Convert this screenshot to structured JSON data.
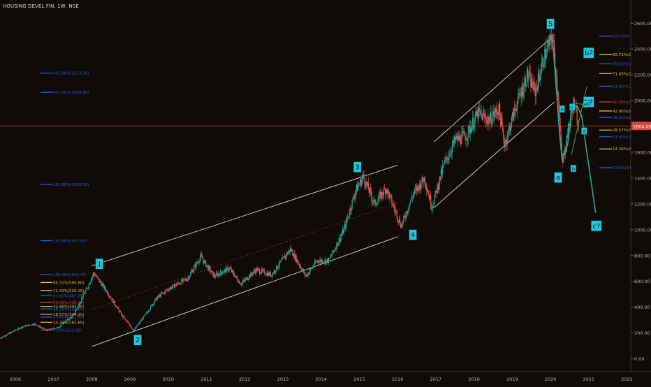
{
  "header": {
    "symbol_title": "HOUSING DEVEL FIN, 1W, NSE"
  },
  "colors": {
    "background": "#110b07",
    "candle_up": "#26a69a",
    "candle_down": "#ef5350",
    "channel": "#d9d9d9",
    "fib_blue": "#2962ff",
    "fib_yellow": "#f2d23a",
    "fib_red": "#f23645",
    "wave_label_bg": "#26c6da",
    "projection": "#26a69a",
    "green_line": "#4caf50",
    "price_line": "#c6472f"
  },
  "chart_data": {
    "type": "candlestick",
    "title": "HOUSING DEVEL FIN, 1W, NSE",
    "ylim": [
      -100,
      2780
    ],
    "xlim": [
      2005.6,
      2022.1
    ],
    "x_ticks": [
      "2006",
      "2007",
      "2008",
      "2009",
      "2010",
      "2011",
      "2012",
      "2013",
      "2014",
      "2015",
      "2016",
      "2017",
      "2018",
      "2019",
      "2020",
      "2021",
      "2022"
    ],
    "x_tick_years": [
      2006,
      2007,
      2008,
      2009,
      2010,
      2011,
      2012,
      2013,
      2014,
      2015,
      2016,
      2017,
      2018,
      2019,
      2020,
      2021,
      2022
    ],
    "y_ticks": [
      "2600.00",
      "2400.00",
      "2200.00",
      "2000.00",
      "1800.00",
      "1600.00",
      "1400.00",
      "1200.00",
      "1000.00",
      "800.00",
      "600.00",
      "400.00",
      "200.00",
      "0.00"
    ],
    "y_tick_values": [
      2600,
      2400,
      2200,
      2000,
      1800,
      1600,
      1400,
      1200,
      1000,
      800,
      600,
      400,
      200,
      0
    ],
    "current_price": {
      "label": "1804.05",
      "value": 1804.05
    },
    "price_path": [
      [
        2005.6,
        160
      ],
      [
        2006.2,
        250
      ],
      [
        2006.5,
        270
      ],
      [
        2006.8,
        220
      ],
      [
        2007.1,
        240
      ],
      [
        2007.5,
        330
      ],
      [
        2007.9,
        560
      ],
      [
        2008.05,
        665
      ],
      [
        2008.4,
        520
      ],
      [
        2008.8,
        330
      ],
      [
        2009.1,
        220
      ],
      [
        2009.4,
        340
      ],
      [
        2009.7,
        470
      ],
      [
        2010.0,
        540
      ],
      [
        2010.5,
        620
      ],
      [
        2010.85,
        790
      ],
      [
        2011.2,
        640
      ],
      [
        2011.6,
        700
      ],
      [
        2011.9,
        580
      ],
      [
        2012.3,
        690
      ],
      [
        2012.7,
        650
      ],
      [
        2013.2,
        850
      ],
      [
        2013.6,
        640
      ],
      [
        2013.9,
        760
      ],
      [
        2014.2,
        760
      ],
      [
        2014.6,
        1000
      ],
      [
        2014.9,
        1300
      ],
      [
        2015.1,
        1410
      ],
      [
        2015.4,
        1200
      ],
      [
        2015.7,
        1320
      ],
      [
        2016.1,
        1030
      ],
      [
        2016.4,
        1270
      ],
      [
        2016.7,
        1400
      ],
      [
        2016.9,
        1180
      ],
      [
        2017.2,
        1490
      ],
      [
        2017.5,
        1690
      ],
      [
        2017.8,
        1730
      ],
      [
        2018.1,
        1900
      ],
      [
        2018.4,
        1850
      ],
      [
        2018.65,
        1940
      ],
      [
        2018.8,
        1660
      ],
      [
        2019.1,
        1960
      ],
      [
        2019.4,
        2200
      ],
      [
        2019.6,
        2070
      ],
      [
        2019.85,
        2350
      ],
      [
        2020.05,
        2500
      ],
      [
        2020.2,
        2050
      ],
      [
        2020.3,
        1500
      ],
      [
        2020.45,
        1750
      ],
      [
        2020.6,
        1980
      ],
      [
        2020.75,
        1800
      ]
    ],
    "wave_labels": [
      {
        "text": "1",
        "x": 2008.2,
        "y": 735
      },
      {
        "text": "2",
        "x": 2009.2,
        "y": 145
      },
      {
        "text": "3",
        "x": 2014.95,
        "y": 1485
      },
      {
        "text": "4",
        "x": 2016.4,
        "y": 960
      },
      {
        "text": "5",
        "x": 2020.0,
        "y": 2595
      },
      {
        "text": "a",
        "x": 2020.2,
        "y": 1405
      },
      {
        "text": "b?",
        "x": 2021.0,
        "y": 2370
      },
      {
        "text": "b?",
        "x": 2021.0,
        "y": 1990
      },
      {
        "text": "c?",
        "x": 2021.2,
        "y": 1030
      }
    ],
    "sub_wave_labels": [
      {
        "text": "a",
        "x": 2020.3,
        "y": 1935
      },
      {
        "text": "b",
        "x": 2020.6,
        "y": 1475
      },
      {
        "text": "c",
        "x": 2020.57,
        "y": 1950
      },
      {
        "text": "ei",
        "x": 2020.93,
        "y": 1975
      },
      {
        "text": "d",
        "x": 2020.88,
        "y": 1765
      }
    ],
    "channels": [
      {
        "x1": 2008.0,
        "y1": 720,
        "x2": 2016.0,
        "y2": 1500
      },
      {
        "x1": 2008.0,
        "y1": 95,
        "x2": 2016.0,
        "y2": 945
      },
      {
        "x1": 2016.95,
        "y1": 1680,
        "x2": 2020.1,
        "y2": 2510
      },
      {
        "x1": 2016.95,
        "y1": 1170,
        "x2": 2020.1,
        "y2": 1990
      }
    ],
    "mid_channel": {
      "x1": 2008.0,
      "y1": 380,
      "x2": 2016.0,
      "y2": 1210
    },
    "projection_path": [
      [
        2020.05,
        2500
      ],
      [
        2020.2,
        1900
      ],
      [
        2020.25,
        1700
      ],
      [
        2020.3,
        1560
      ],
      [
        2020.45,
        1660
      ],
      [
        2020.55,
        1920
      ],
      [
        2020.7,
        1960
      ],
      [
        2020.82,
        1880
      ],
      [
        2020.95,
        1600
      ],
      [
        2021.05,
        1400
      ],
      [
        2021.18,
        1130
      ]
    ],
    "green_lines": [
      {
        "x1": 2020.55,
        "y1": 1580,
        "x2": 2020.95,
        "y2": 2110
      },
      {
        "x1": 2020.6,
        "y1": 1980,
        "x2": 2020.9,
        "y2": 1970
      }
    ],
    "fib_left": [
      {
        "label": "461.80%(2213.30)",
        "value": 2213.3,
        "color": "blue"
      },
      {
        "label": "427.00%(2064.60)",
        "value": 2064.6,
        "color": "blue"
      },
      {
        "label": "261.80%(1350.50)",
        "value": 1350.5,
        "color": "blue"
      },
      {
        "label": "161.80%(915.05)",
        "value": 915.05,
        "color": "blue"
      },
      {
        "label": "100.00%(652.45)",
        "value": 652.45,
        "color": "blue"
      },
      {
        "label": "85.71%(590.80)",
        "value": 590.8,
        "color": "yellow"
      },
      {
        "label": "71.43%(529.15)",
        "value": 529.15,
        "color": "yellow"
      },
      {
        "label": "61.80%(487.65)",
        "value": 487.65,
        "color": "blue"
      },
      {
        "label": "50.00%(436.75)",
        "value": 436.75,
        "color": "red"
      },
      {
        "label": "42.86%(405.90)",
        "value": 405.9,
        "color": "yellow"
      },
      {
        "label": "38.20%(385.80)",
        "value": 385.8,
        "color": "blue"
      },
      {
        "label": "28.57%(344.25)",
        "value": 344.25,
        "color": "yellow"
      },
      {
        "label": "23.60%(322.70)",
        "value": 322.7,
        "color": "blue"
      },
      {
        "label": "14.29%(282.65)",
        "value": 282.65,
        "color": "yellow"
      },
      {
        "label": "0.00%(221.00)",
        "value": 221.0,
        "color": "blue"
      }
    ],
    "fib_right": [
      {
        "label": "100.00%",
        "value": 2500,
        "color": "blue"
      },
      {
        "label": "85.71%(2",
        "value": 2357,
        "color": "yellow"
      },
      {
        "label": "78.60%(2",
        "value": 2285,
        "color": "blue"
      },
      {
        "label": "71.43%(2",
        "value": 2210,
        "color": "yellow"
      },
      {
        "label": "61.80%(2",
        "value": 2112,
        "color": "blue"
      },
      {
        "label": "50.00%(1",
        "value": 1990,
        "color": "red"
      },
      {
        "label": "42.86%(1",
        "value": 1920,
        "color": "yellow"
      },
      {
        "label": "38.20%(1",
        "value": 1870,
        "color": "blue"
      },
      {
        "label": "28.57%(1",
        "value": 1772,
        "color": "yellow"
      },
      {
        "label": "23.60%(1",
        "value": 1720,
        "color": "blue"
      },
      {
        "label": "14.29%(1",
        "value": 1626,
        "color": "yellow"
      },
      {
        "label": "0.00%(14",
        "value": 1480,
        "color": "blue"
      }
    ]
  }
}
